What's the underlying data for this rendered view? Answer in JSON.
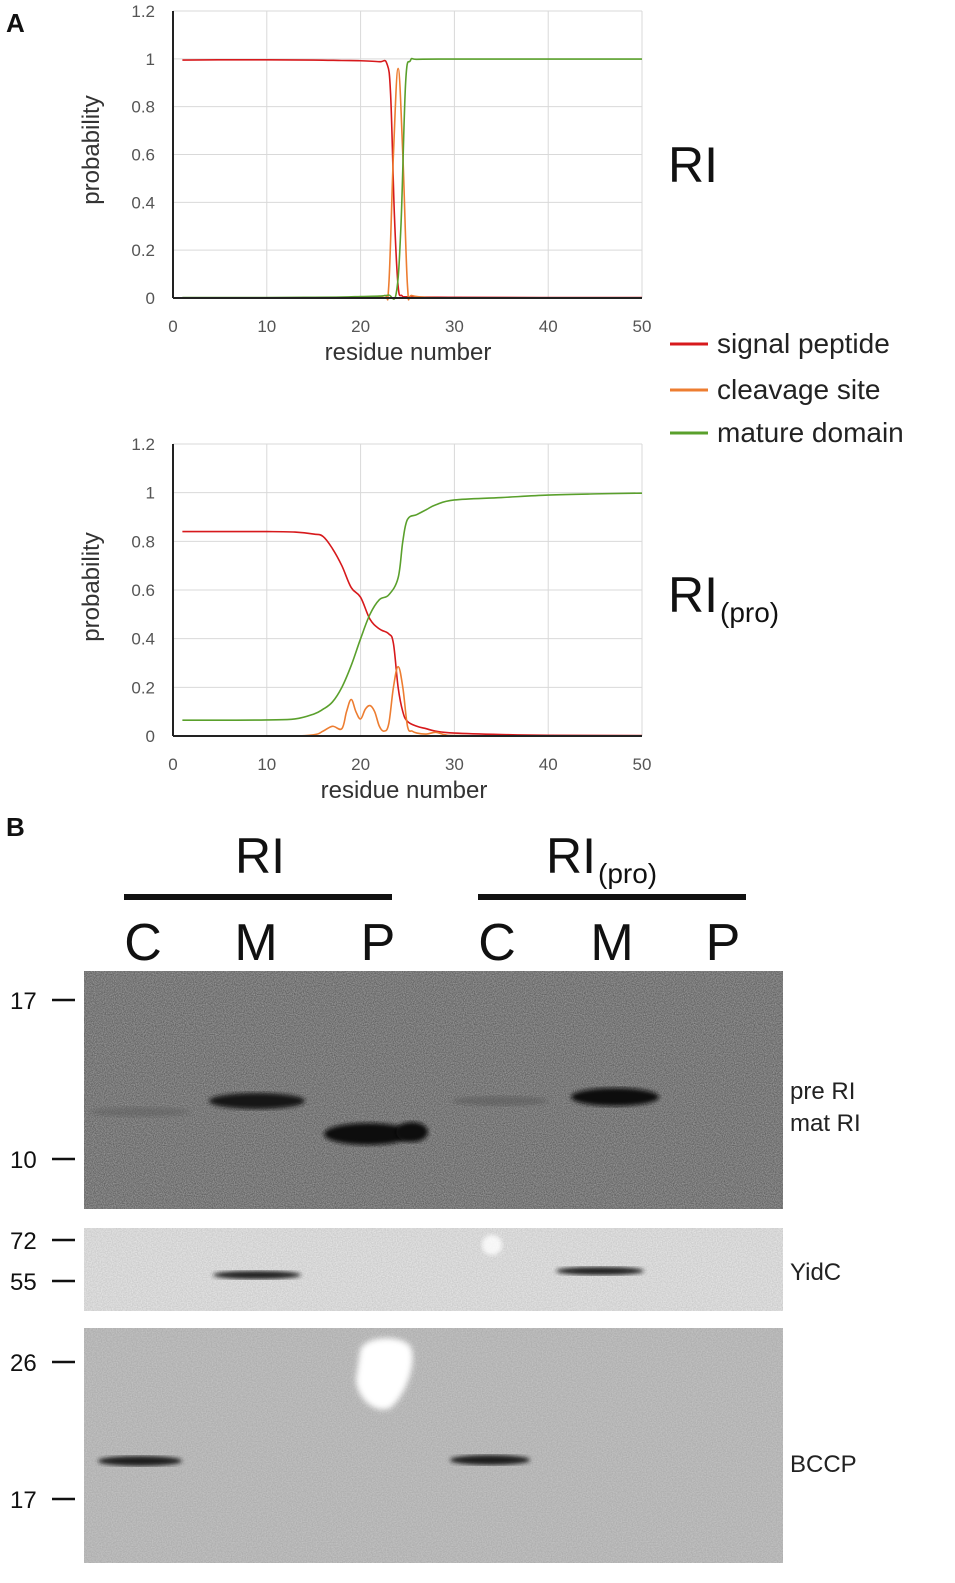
{
  "panel_labels": {
    "a": "A",
    "b": "B"
  },
  "colors": {
    "signal_peptide": "#d7191c",
    "cleavage_site": "#ed7d31",
    "mature_domain": "#5aa02c",
    "grid": "#d9d9d9",
    "axis": "#222222"
  },
  "legend": [
    {
      "label": "signal peptide",
      "color": "#d7191c"
    },
    {
      "label": "cleavage site",
      "color": "#ed7d31"
    },
    {
      "label": "mature domain",
      "color": "#5aa02c"
    }
  ],
  "chart_data": [
    {
      "type": "line",
      "title": "",
      "side_label": {
        "main": "RI",
        "sub": ""
      },
      "xlabel": "residue number",
      "ylabel": "probability",
      "xlim": [
        0,
        50
      ],
      "ylim": [
        0,
        1.2
      ],
      "xticks": [
        "0",
        "10",
        "20",
        "30",
        "40",
        "50"
      ],
      "yticks": [
        "0",
        "0.2",
        "0.4",
        "0.6",
        "0.8",
        "1",
        "1.2"
      ],
      "grid": true,
      "series": [
        {
          "name": "signal peptide",
          "color": "#d7191c",
          "x": [
            1,
            5,
            10,
            15,
            18,
            20,
            22,
            22.8,
            23.2,
            23.6,
            24,
            24.4,
            25,
            30,
            40,
            50
          ],
          "y": [
            0.995,
            0.996,
            0.996,
            0.995,
            0.993,
            0.992,
            0.988,
            0.98,
            0.85,
            0.35,
            0.05,
            0.01,
            0.005,
            0.003,
            0.002,
            0.002
          ]
        },
        {
          "name": "cleavage site",
          "color": "#ed7d31",
          "x": [
            1,
            10,
            20,
            22.5,
            23,
            23.5,
            24,
            24.5,
            25,
            25.5,
            30,
            40,
            50
          ],
          "y": [
            0,
            0,
            0,
            0.01,
            0.05,
            0.6,
            0.96,
            0.6,
            0.05,
            0.01,
            0,
            0,
            0
          ]
        },
        {
          "name": "mature domain",
          "color": "#5aa02c",
          "x": [
            1,
            10,
            15,
            18,
            20,
            22,
            23,
            23.8,
            24.3,
            24.8,
            25.3,
            26,
            30,
            40,
            50
          ],
          "y": [
            0.002,
            0.002,
            0.003,
            0.004,
            0.006,
            0.008,
            0.012,
            0.02,
            0.3,
            0.9,
            0.992,
            0.998,
            0.999,
            0.999,
            0.999
          ]
        }
      ]
    },
    {
      "type": "line",
      "title": "",
      "side_label": {
        "main": "RI",
        "sub": "(pro)"
      },
      "xlabel": "residue number",
      "ylabel": "probability",
      "xlim": [
        0,
        50
      ],
      "ylim": [
        0,
        1.2
      ],
      "xticks": [
        "0",
        "10",
        "20",
        "30",
        "40",
        "50"
      ],
      "yticks": [
        "0",
        "0.2",
        "0.4",
        "0.6",
        "0.8",
        "1",
        "1.2"
      ],
      "grid": true,
      "series": [
        {
          "name": "signal peptide",
          "color": "#d7191c",
          "x": [
            1,
            5,
            10,
            13,
            15,
            16,
            17,
            18,
            19,
            20,
            21,
            22,
            23,
            23.5,
            24,
            24.5,
            25,
            26,
            27,
            28,
            30,
            35,
            40,
            50
          ],
          "y": [
            0.84,
            0.84,
            0.84,
            0.838,
            0.83,
            0.82,
            0.77,
            0.7,
            0.61,
            0.57,
            0.48,
            0.44,
            0.42,
            0.38,
            0.2,
            0.1,
            0.06,
            0.04,
            0.03,
            0.02,
            0.012,
            0.006,
            0.003,
            0.002
          ]
        },
        {
          "name": "cleavage site",
          "color": "#ed7d31",
          "x": [
            1,
            12,
            15,
            16,
            17,
            18,
            18.5,
            19,
            19.5,
            20,
            20.5,
            21,
            21.5,
            22,
            22.5,
            23,
            23.5,
            24,
            24.5,
            25,
            25.5,
            26,
            27,
            28,
            29,
            30,
            35,
            50
          ],
          "y": [
            0,
            0,
            0.005,
            0.02,
            0.04,
            0.03,
            0.1,
            0.15,
            0.1,
            0.07,
            0.11,
            0.125,
            0.1,
            0.04,
            0.02,
            0.05,
            0.2,
            0.285,
            0.2,
            0.04,
            0.02,
            0.012,
            0.008,
            0.015,
            0.005,
            0.002,
            0,
            0
          ]
        },
        {
          "name": "mature domain",
          "color": "#5aa02c",
          "x": [
            1,
            5,
            10,
            13,
            15,
            16,
            17,
            18,
            19,
            20,
            21,
            22,
            23,
            24,
            24.5,
            25,
            26,
            27,
            28,
            30,
            35,
            40,
            45,
            50
          ],
          "y": [
            0.065,
            0.065,
            0.066,
            0.07,
            0.09,
            0.11,
            0.14,
            0.2,
            0.29,
            0.4,
            0.5,
            0.56,
            0.58,
            0.65,
            0.8,
            0.89,
            0.91,
            0.93,
            0.95,
            0.97,
            0.98,
            0.99,
            0.995,
            0.998
          ]
        }
      ]
    }
  ],
  "blot": {
    "groups": [
      {
        "main": "RI",
        "sub": ""
      },
      {
        "main": "RI",
        "sub": "(pro)"
      }
    ],
    "lanes": [
      "C",
      "M",
      "P",
      "C",
      "M",
      "P"
    ],
    "panels": [
      {
        "markers": [
          "17",
          "10"
        ],
        "band_labels": [
          "pre RI",
          "mat RI"
        ]
      },
      {
        "markers": [
          "72",
          "55"
        ],
        "band_labels": [
          "YidC"
        ]
      },
      {
        "markers": [
          "26",
          "17"
        ],
        "band_labels": [
          "BCCP"
        ]
      }
    ]
  }
}
